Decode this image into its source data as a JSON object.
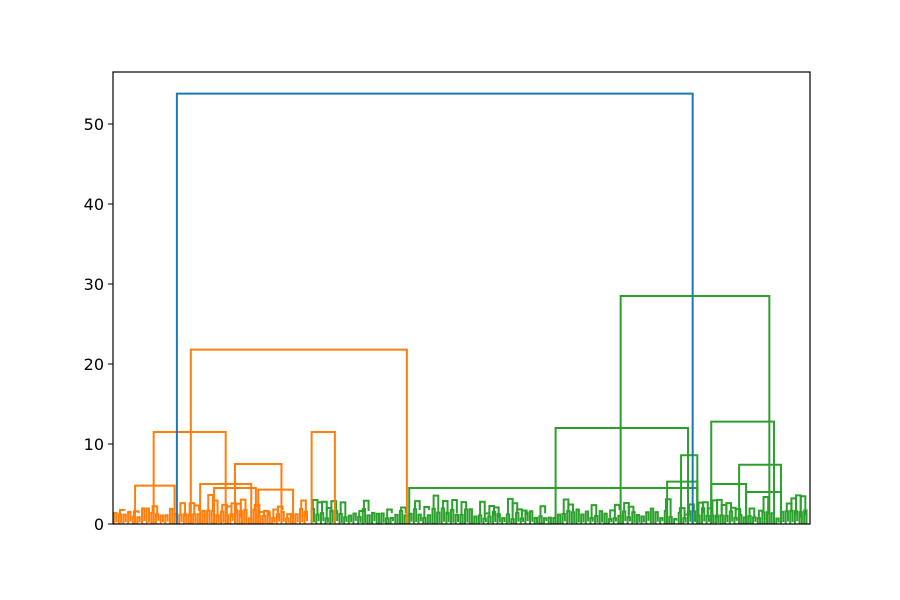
{
  "chart_data": {
    "type": "dendrogram",
    "title": "",
    "xlabel": "",
    "ylabel": "",
    "ylim": [
      0,
      56.5
    ],
    "y_ticks": [
      "0",
      "10",
      "20",
      "30",
      "40",
      "50"
    ],
    "grid": false,
    "legend": "none",
    "colors": {
      "cluster_1": "#ff7f0e",
      "cluster_2": "#2ca02c",
      "above_threshold": "#1f77b4",
      "axis": "#000000"
    },
    "leaf_count": 300,
    "clusters": [
      {
        "color": "cluster_1",
        "leaf_range": [
          1,
          85
        ]
      },
      {
        "color": "cluster_2",
        "leaf_range": [
          86,
          300
        ]
      }
    ],
    "merges": [
      {
        "left": 10,
        "right": 27,
        "height": 4.8,
        "color": "cluster_1"
      },
      {
        "left": 44,
        "right": 62,
        "height": 4.5,
        "color": "cluster_1"
      },
      {
        "left": 63,
        "right": 78,
        "height": 4.3,
        "color": "cluster_1"
      },
      {
        "left": 38,
        "right": 60,
        "height": 5.0,
        "color": "cluster_1"
      },
      {
        "left": 18,
        "right": 49,
        "height": 11.5,
        "color": "cluster_1"
      },
      {
        "left": 53,
        "right": 73,
        "height": 7.5,
        "color": "cluster_1"
      },
      {
        "left": 96,
        "right": 86,
        "height": 11.5,
        "color": "cluster_1"
      },
      {
        "left": 34,
        "right": 127,
        "height": 21.8,
        "color": "cluster_1"
      },
      {
        "left": 128,
        "right": 252,
        "height": 4.5,
        "color": "cluster_2"
      },
      {
        "left": 239,
        "right": 252,
        "height": 5.3,
        "color": "cluster_2"
      },
      {
        "left": 252,
        "right": 245,
        "height": 8.6,
        "color": "cluster_2"
      },
      {
        "left": 191,
        "right": 248,
        "height": 12.0,
        "color": "cluster_2"
      },
      {
        "left": 258,
        "right": 273,
        "height": 5.0,
        "color": "cluster_2"
      },
      {
        "left": 273,
        "right": 288,
        "height": 4.0,
        "color": "cluster_2"
      },
      {
        "left": 270,
        "right": 288,
        "height": 7.4,
        "color": "cluster_2"
      },
      {
        "left": 258,
        "right": 285,
        "height": 12.8,
        "color": "cluster_2"
      },
      {
        "left": 219,
        "right": 283,
        "height": 28.5,
        "color": "cluster_2"
      },
      {
        "left": 28,
        "right": 250,
        "height": 53.8,
        "color": "above_threshold"
      }
    ]
  }
}
